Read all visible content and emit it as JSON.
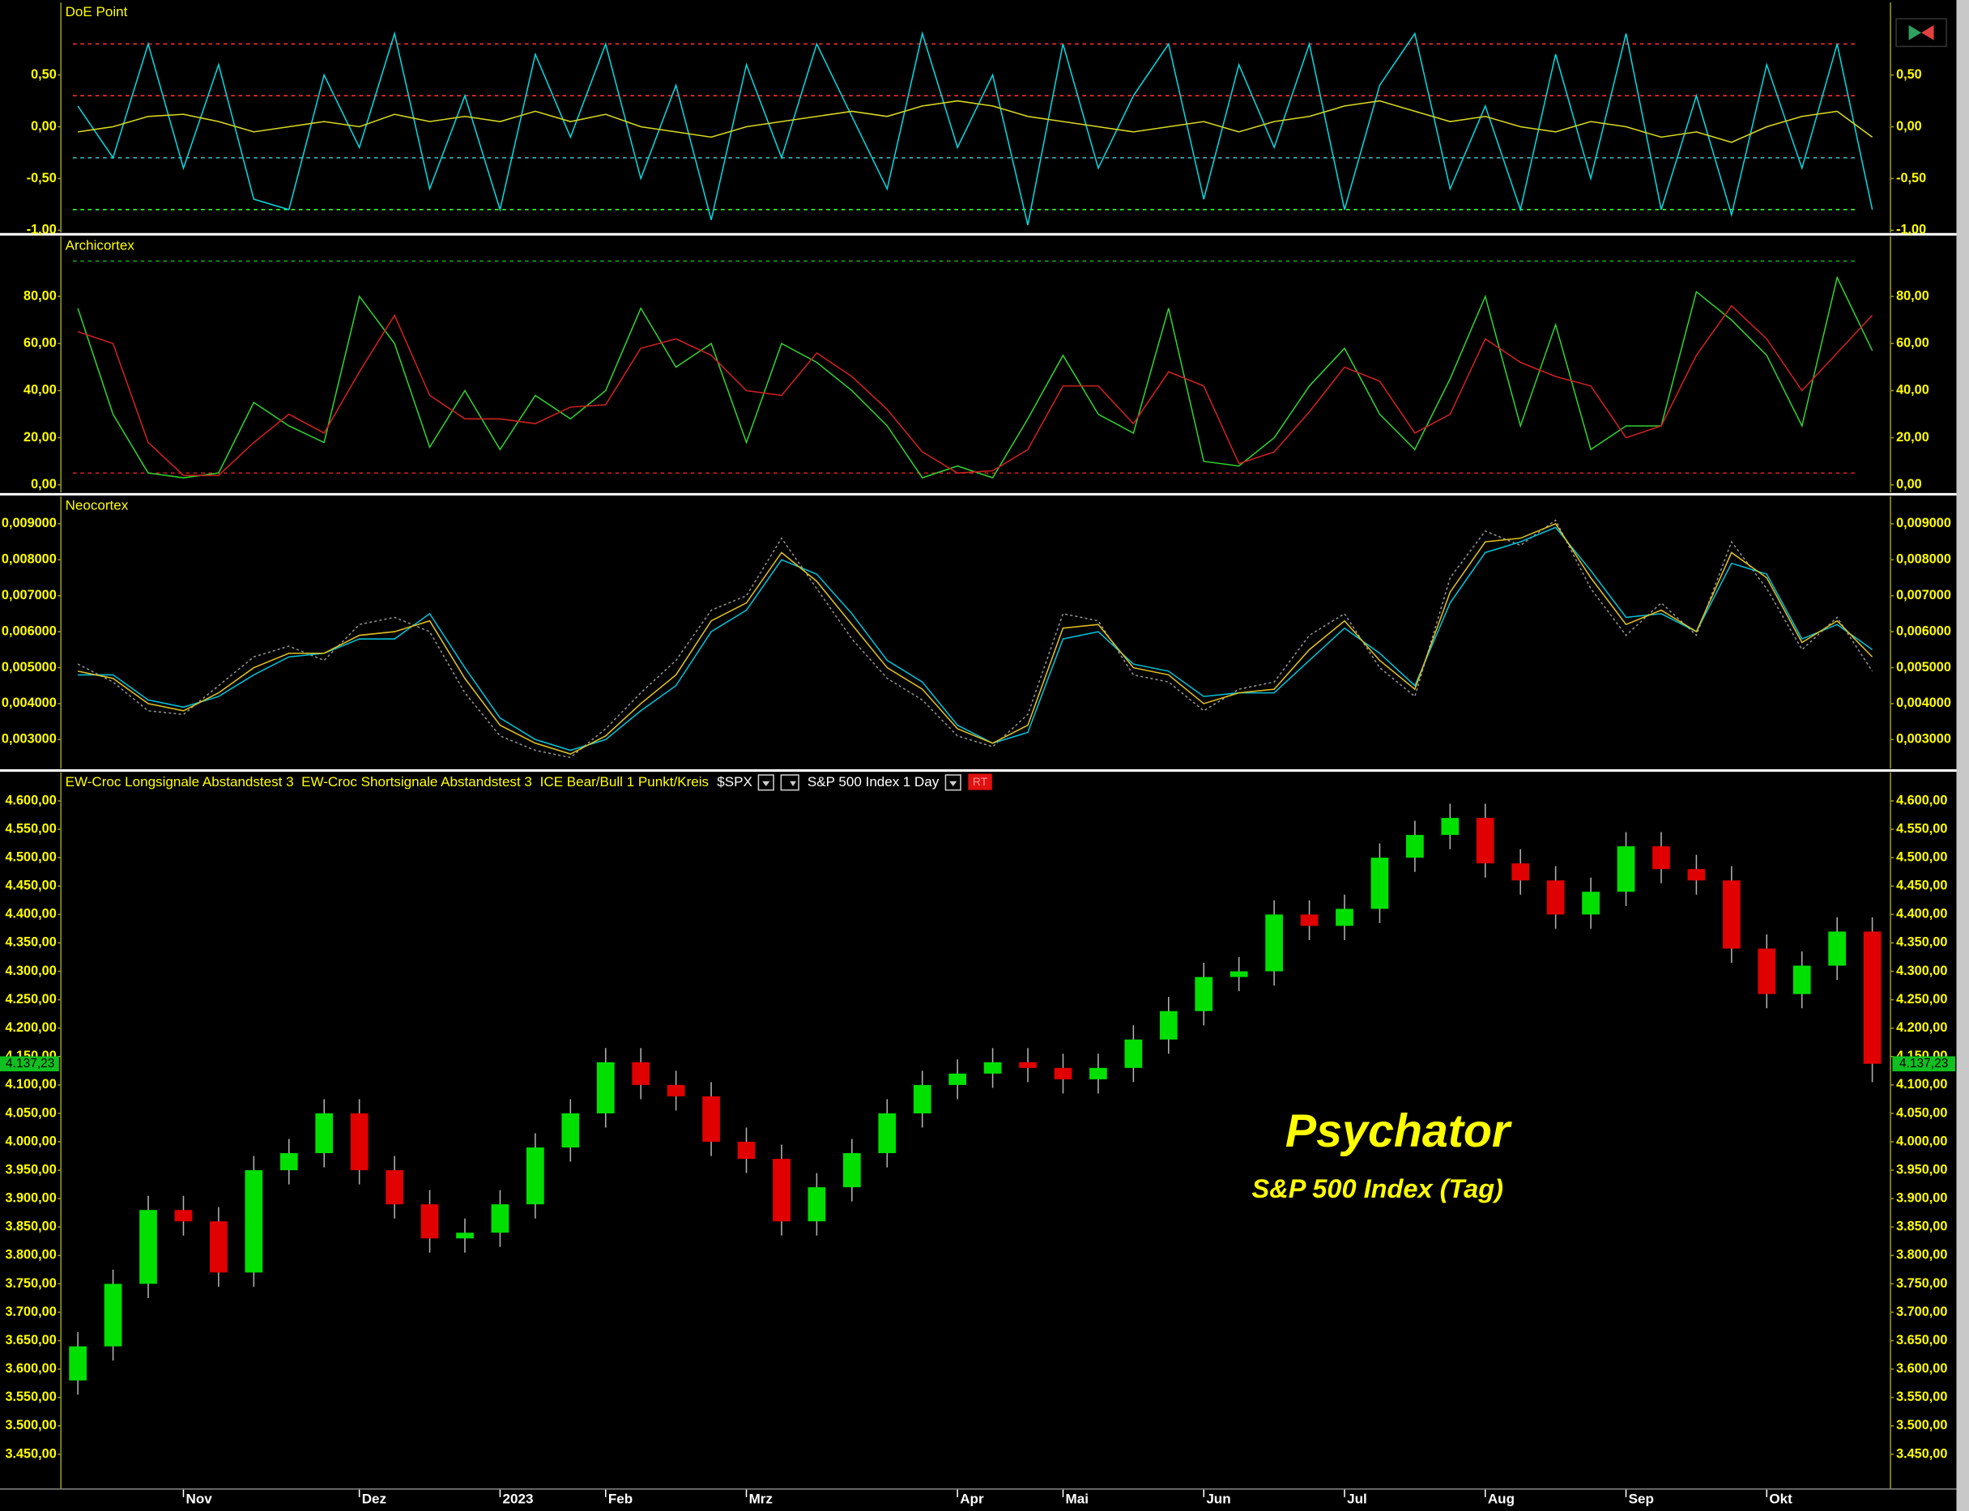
{
  "chart_data": [
    {
      "type": "line",
      "title": "DoE Point",
      "ylim": [
        -1.02,
        1.2
      ],
      "yticks": [
        {
          "value": -1,
          "label": "-1,00"
        },
        {
          "value": -0.5,
          "label": "-0,50"
        },
        {
          "value": 0,
          "label": "0,00"
        },
        {
          "value": 0.5,
          "label": "0,50"
        }
      ],
      "levels": [
        {
          "value": 0.8,
          "color": "#ff3030"
        },
        {
          "value": 0.3,
          "color": "#ff3030"
        },
        {
          "value": -0.3,
          "color": "#40c0c0"
        },
        {
          "value": -0.8,
          "color": "#30ff30"
        }
      ],
      "series": [
        {
          "color": "#00d8e0",
          "values": [
            0.2,
            -0.3,
            0.8,
            -0.4,
            0.6,
            -0.7,
            -0.8,
            0.5,
            -0.2,
            0.9,
            -0.6,
            0.3,
            -0.8,
            0.7,
            -0.1,
            0.8,
            -0.5,
            0.4,
            -0.9,
            0.6,
            -0.3,
            0.8,
            0.1,
            -0.6,
            0.9,
            -0.2,
            0.5,
            -0.95,
            0.8,
            -0.4,
            0.3,
            0.8,
            -0.7,
            0.6,
            -0.2,
            0.8,
            -0.8,
            0.4,
            0.9,
            -0.6,
            0.2,
            -0.8,
            0.7,
            -0.5,
            0.9,
            -0.8,
            0.3,
            -0.85,
            0.6,
            -0.4,
            0.8,
            -0.8
          ]
        },
        {
          "color": "#d8d820",
          "values": [
            -0.05,
            0.0,
            0.1,
            0.12,
            0.05,
            -0.05,
            0.0,
            0.05,
            0.0,
            0.12,
            0.05,
            0.1,
            0.05,
            0.15,
            0.05,
            0.12,
            0.0,
            -0.05,
            -0.1,
            0.0,
            0.05,
            0.1,
            0.15,
            0.1,
            0.2,
            0.25,
            0.2,
            0.1,
            0.05,
            0.0,
            -0.05,
            0.0,
            0.05,
            -0.05,
            0.05,
            0.1,
            0.2,
            0.25,
            0.15,
            0.05,
            0.1,
            0.0,
            -0.05,
            0.05,
            0.0,
            -0.1,
            -0.05,
            -0.15,
            0.0,
            0.1,
            0.15,
            -0.1
          ]
        }
      ]
    },
    {
      "type": "line",
      "title": "Archicortex",
      "ylim": [
        -3.2,
        105.6
      ],
      "yticks": [
        {
          "value": 0,
          "label": "0,00"
        },
        {
          "value": 20,
          "label": "20,00"
        },
        {
          "value": 40,
          "label": "40,00"
        },
        {
          "value": 60,
          "label": "60,00"
        },
        {
          "value": 80,
          "label": "80,00"
        }
      ],
      "levels": [
        {
          "value": 95,
          "color": "#20a020"
        },
        {
          "value": 5,
          "color": "#c02020"
        }
      ],
      "series": [
        {
          "color": "#30d030",
          "values": [
            75,
            30,
            5,
            3,
            5,
            35,
            25,
            18,
            80,
            60,
            16,
            40,
            15,
            38,
            28,
            40,
            75,
            50,
            60,
            18,
            60,
            52,
            40,
            25,
            3,
            8,
            3,
            28,
            55,
            30,
            22,
            75,
            10,
            8,
            20,
            42,
            58,
            30,
            15,
            45,
            80,
            25,
            68,
            15,
            25,
            25,
            82,
            70,
            55,
            25,
            88,
            57
          ]
        },
        {
          "color": "#d02020",
          "values": [
            65,
            60,
            18,
            4,
            4,
            18,
            30,
            22,
            48,
            72,
            38,
            28,
            28,
            26,
            33,
            34,
            58,
            62,
            55,
            40,
            38,
            56,
            46,
            32,
            14,
            5,
            6,
            15,
            42,
            42,
            26,
            48,
            42,
            9,
            14,
            31,
            50,
            44,
            22,
            30,
            62,
            52,
            46,
            42,
            20,
            25,
            55,
            76,
            62,
            40,
            56,
            72
          ]
        }
      ]
    },
    {
      "type": "line",
      "title": "Neocortex",
      "ylim": [
        0.00219,
        0.00977
      ],
      "yticks": [
        {
          "value": 0.003,
          "label": "0,003000"
        },
        {
          "value": 0.004,
          "label": "0,004000"
        },
        {
          "value": 0.005,
          "label": "0,005000"
        },
        {
          "value": 0.006,
          "label": "0,006000"
        },
        {
          "value": 0.007,
          "label": "0,007000"
        },
        {
          "value": 0.008,
          "label": "0,008000"
        },
        {
          "value": 0.009,
          "label": "0,009000"
        }
      ],
      "series": [
        {
          "color": "#909090",
          "dash": true,
          "values": [
            0.0051,
            0.0046,
            0.0038,
            0.0037,
            0.0045,
            0.0053,
            0.0056,
            0.0052,
            0.0062,
            0.0064,
            0.006,
            0.0043,
            0.0031,
            0.0027,
            0.0025,
            0.0033,
            0.0043,
            0.0052,
            0.0066,
            0.007,
            0.0086,
            0.0072,
            0.0058,
            0.0047,
            0.0041,
            0.0031,
            0.0028,
            0.0037,
            0.0065,
            0.0063,
            0.0048,
            0.0046,
            0.0038,
            0.0044,
            0.0046,
            0.0059,
            0.0065,
            0.005,
            0.0042,
            0.0075,
            0.0088,
            0.0084,
            0.0091,
            0.0072,
            0.0059,
            0.0068,
            0.0059,
            0.0085,
            0.0072,
            0.0055,
            0.0064,
            0.0049
          ]
        },
        {
          "color": "#00c0d8",
          "values": [
            0.0048,
            0.0048,
            0.0041,
            0.0039,
            0.0042,
            0.0048,
            0.0053,
            0.0054,
            0.0058,
            0.0058,
            0.0065,
            0.005,
            0.0036,
            0.003,
            0.0027,
            0.003,
            0.0038,
            0.0045,
            0.006,
            0.0066,
            0.008,
            0.0076,
            0.0065,
            0.0052,
            0.0046,
            0.0034,
            0.0029,
            0.0032,
            0.0058,
            0.006,
            0.0051,
            0.0049,
            0.0042,
            0.0043,
            0.0043,
            0.0052,
            0.0061,
            0.0054,
            0.0045,
            0.0068,
            0.0082,
            0.0085,
            0.0089,
            0.0077,
            0.0064,
            0.0065,
            0.006,
            0.0079,
            0.0076,
            0.0058,
            0.0062,
            0.0055
          ]
        },
        {
          "color": "#e0c020",
          "values": [
            0.0049,
            0.0047,
            0.004,
            0.0038,
            0.0043,
            0.005,
            0.0054,
            0.0054,
            0.0059,
            0.006,
            0.0063,
            0.0047,
            0.0034,
            0.0029,
            0.0026,
            0.0031,
            0.004,
            0.0048,
            0.0063,
            0.0068,
            0.0082,
            0.0074,
            0.0062,
            0.005,
            0.0044,
            0.0033,
            0.0029,
            0.0034,
            0.0061,
            0.0062,
            0.005,
            0.0048,
            0.004,
            0.0043,
            0.0044,
            0.0055,
            0.0063,
            0.0052,
            0.0044,
            0.0071,
            0.0085,
            0.0086,
            0.009,
            0.0075,
            0.0062,
            0.0066,
            0.006,
            0.0082,
            0.0075,
            0.0057,
            0.0063,
            0.0053
          ]
        }
      ]
    },
    {
      "type": "candlestick",
      "legend": [
        "EW-Croc Longsignale Abstandstest 3",
        "EW-Croc Shortsignale Abstandstest 3",
        "ICE Bear/Bull 1 Punkt/Kreis"
      ],
      "symbol": "$SPX",
      "instrument": "S&P 500 Index",
      "interval": "1 Day",
      "badge": "RT",
      "annotations": [
        "Psychator",
        "S&P 500 Index (Tag)"
      ],
      "up_color": "#00e000",
      "down_color": "#e00000",
      "last_price": {
        "value": 4137.23,
        "label": "4.137,23"
      },
      "ylim": [
        3390,
        4650
      ],
      "yticks": [
        {
          "value": 3450,
          "label": "3.450,00"
        },
        {
          "value": 3500,
          "label": "3.500,00"
        },
        {
          "value": 3550,
          "label": "3.550,00"
        },
        {
          "value": 3600,
          "label": "3.600,00"
        },
        {
          "value": 3650,
          "label": "3.650,00"
        },
        {
          "value": 3700,
          "label": "3.700,00"
        },
        {
          "value": 3750,
          "label": "3.750,00"
        },
        {
          "value": 3800,
          "label": "3.800,00"
        },
        {
          "value": 3850,
          "label": "3.850,00"
        },
        {
          "value": 3900,
          "label": "3.900,00"
        },
        {
          "value": 3950,
          "label": "3.950,00"
        },
        {
          "value": 4000,
          "label": "4.000,00"
        },
        {
          "value": 4050,
          "label": "4.050,00"
        },
        {
          "value": 4100,
          "label": "4.100,00"
        },
        {
          "value": 4150,
          "label": "4.150,00"
        },
        {
          "value": 4200,
          "label": "4.200,00"
        },
        {
          "value": 4250,
          "label": "4.250,00"
        },
        {
          "value": 4300,
          "label": "4.300,00"
        },
        {
          "value": 4350,
          "label": "4.350,00"
        },
        {
          "value": 4400,
          "label": "4.400,00"
        },
        {
          "value": 4450,
          "label": "4.450,00"
        },
        {
          "value": 4500,
          "label": "4.500,00"
        },
        {
          "value": 4550,
          "label": "4.550,00"
        },
        {
          "value": 4600,
          "label": "4.600,00"
        }
      ],
      "categories": [
        null,
        null,
        null,
        "Nov",
        null,
        null,
        null,
        null,
        "Dez",
        null,
        null,
        null,
        "2023",
        null,
        null,
        "Feb",
        null,
        null,
        null,
        "Mrz",
        null,
        null,
        null,
        null,
        null,
        "Apr",
        null,
        null,
        "Mai",
        null,
        null,
        null,
        "Jun",
        null,
        null,
        null,
        "Jul",
        null,
        null,
        null,
        "Aug",
        null,
        null,
        null,
        "Sep",
        null,
        null,
        null,
        "Okt",
        null,
        null,
        null
      ],
      "open": [
        3580,
        3640,
        3750,
        3880,
        3860,
        3770,
        3950,
        3980,
        4050,
        3950,
        3890,
        3830,
        3840,
        3890,
        3990,
        4050,
        4140,
        4100,
        4080,
        4000,
        3970,
        3860,
        3920,
        3980,
        4050,
        4100,
        4120,
        4140,
        4130,
        4110,
        4130,
        4180,
        4230,
        4290,
        4300,
        4400,
        4380,
        4410,
        4500,
        4540,
        4570,
        4490,
        4460,
        4400,
        4440,
        4520,
        4480,
        4460,
        4340,
        4260,
        4310,
        4370
      ],
      "high": [
        3665,
        3775,
        3905,
        3905,
        3885,
        3975,
        4005,
        4075,
        4075,
        3975,
        3915,
        3865,
        3915,
        4015,
        4075,
        4165,
        4165,
        4125,
        4105,
        4025,
        3995,
        3945,
        4005,
        4075,
        4125,
        4145,
        4165,
        4165,
        4155,
        4155,
        4205,
        4255,
        4315,
        4325,
        4425,
        4425,
        4435,
        4525,
        4565,
        4595,
        4595,
        4515,
        4485,
        4465,
        4545,
        4545,
        4505,
        4485,
        4365,
        4335,
        4395,
        4395
      ],
      "low": [
        3555,
        3615,
        3725,
        3835,
        3745,
        3745,
        3925,
        3955,
        3925,
        3865,
        3805,
        3805,
        3815,
        3865,
        3965,
        4025,
        4075,
        4055,
        3975,
        3945,
        3835,
        3835,
        3895,
        3955,
        4025,
        4075,
        4095,
        4105,
        4085,
        4085,
        4105,
        4155,
        4205,
        4265,
        4275,
        4355,
        4355,
        4385,
        4475,
        4515,
        4465,
        4435,
        4375,
        4375,
        4415,
        4455,
        4435,
        4315,
        4235,
        4235,
        4285,
        4105
      ],
      "close": [
        3640,
        3750,
        3880,
        3860,
        3770,
        3950,
        3980,
        4050,
        3950,
        3890,
        3830,
        3840,
        3890,
        3990,
        4050,
        4140,
        4100,
        4080,
        4000,
        3970,
        3860,
        3920,
        3980,
        4050,
        4100,
        4120,
        4140,
        4130,
        4110,
        4130,
        4180,
        4230,
        4290,
        4300,
        4400,
        4380,
        4410,
        4500,
        4540,
        4570,
        4490,
        4460,
        4400,
        4440,
        4520,
        4480,
        4460,
        4340,
        4260,
        4310,
        4370,
        4137.23
      ]
    }
  ]
}
